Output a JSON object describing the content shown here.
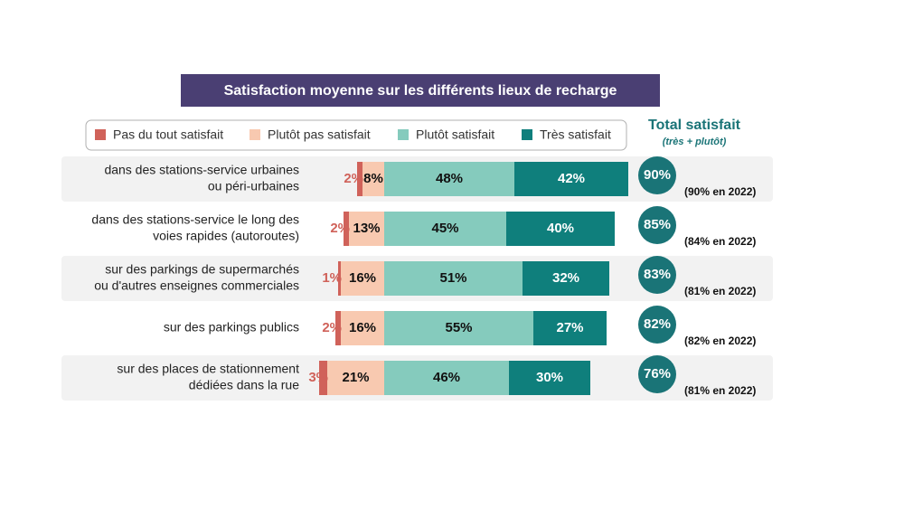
{
  "chart_data": {
    "type": "diverging_bar",
    "title": "Satisfaction moyenne sur les différents lieux de recharge",
    "categories": [
      [
        "dans des stations-service urbaines",
        "ou péri-urbaines"
      ],
      [
        "dans des stations-service le long des",
        "voies rapides (autoroutes)"
      ],
      [
        "sur des parkings de supermarchés",
        "ou d'autres enseignes commerciales"
      ],
      [
        "sur des parkings publics"
      ],
      [
        "sur des places de stationnement",
        "dédiées dans la rue"
      ]
    ],
    "series": [
      {
        "name": "Pas du tout satisfait",
        "color": "#d0625a",
        "side": "negative",
        "values": [
          2,
          2,
          1,
          2,
          3
        ],
        "value_labels": [
          "2%",
          "2%",
          "1%",
          "2%",
          "3%"
        ]
      },
      {
        "name": "Plutôt pas satisfait",
        "color": "#f8c9b0",
        "side": "negative",
        "values": [
          8,
          13,
          16,
          16,
          21
        ],
        "value_labels": [
          "8%",
          "13%",
          "16%",
          "16%",
          "21%"
        ]
      },
      {
        "name": "Plutôt satisfait",
        "color": "#85cbbd",
        "side": "positive",
        "values": [
          48,
          45,
          51,
          55,
          46
        ],
        "value_labels": [
          "48%",
          "45%",
          "51%",
          "55%",
          "46%"
        ]
      },
      {
        "name": "Très satisfait",
        "color": "#0f7f7c",
        "side": "positive",
        "values": [
          42,
          40,
          32,
          27,
          30
        ],
        "value_labels": [
          "42%",
          "40%",
          "32%",
          "27%",
          "30%"
        ]
      }
    ],
    "total_title": "Total satisfait",
    "total_subtitle": "(très + plutôt)",
    "totals": [
      90,
      85,
      83,
      82,
      76
    ],
    "total_labels": [
      "90%",
      "85%",
      "83%",
      "82%",
      "76%"
    ],
    "previous_labels": [
      "(90% en 2022)",
      "(84% en 2022)",
      "(81% en 2022)",
      "(82% en 2022)",
      "(81% en 2022)"
    ],
    "total_color": "#1a7477"
  }
}
